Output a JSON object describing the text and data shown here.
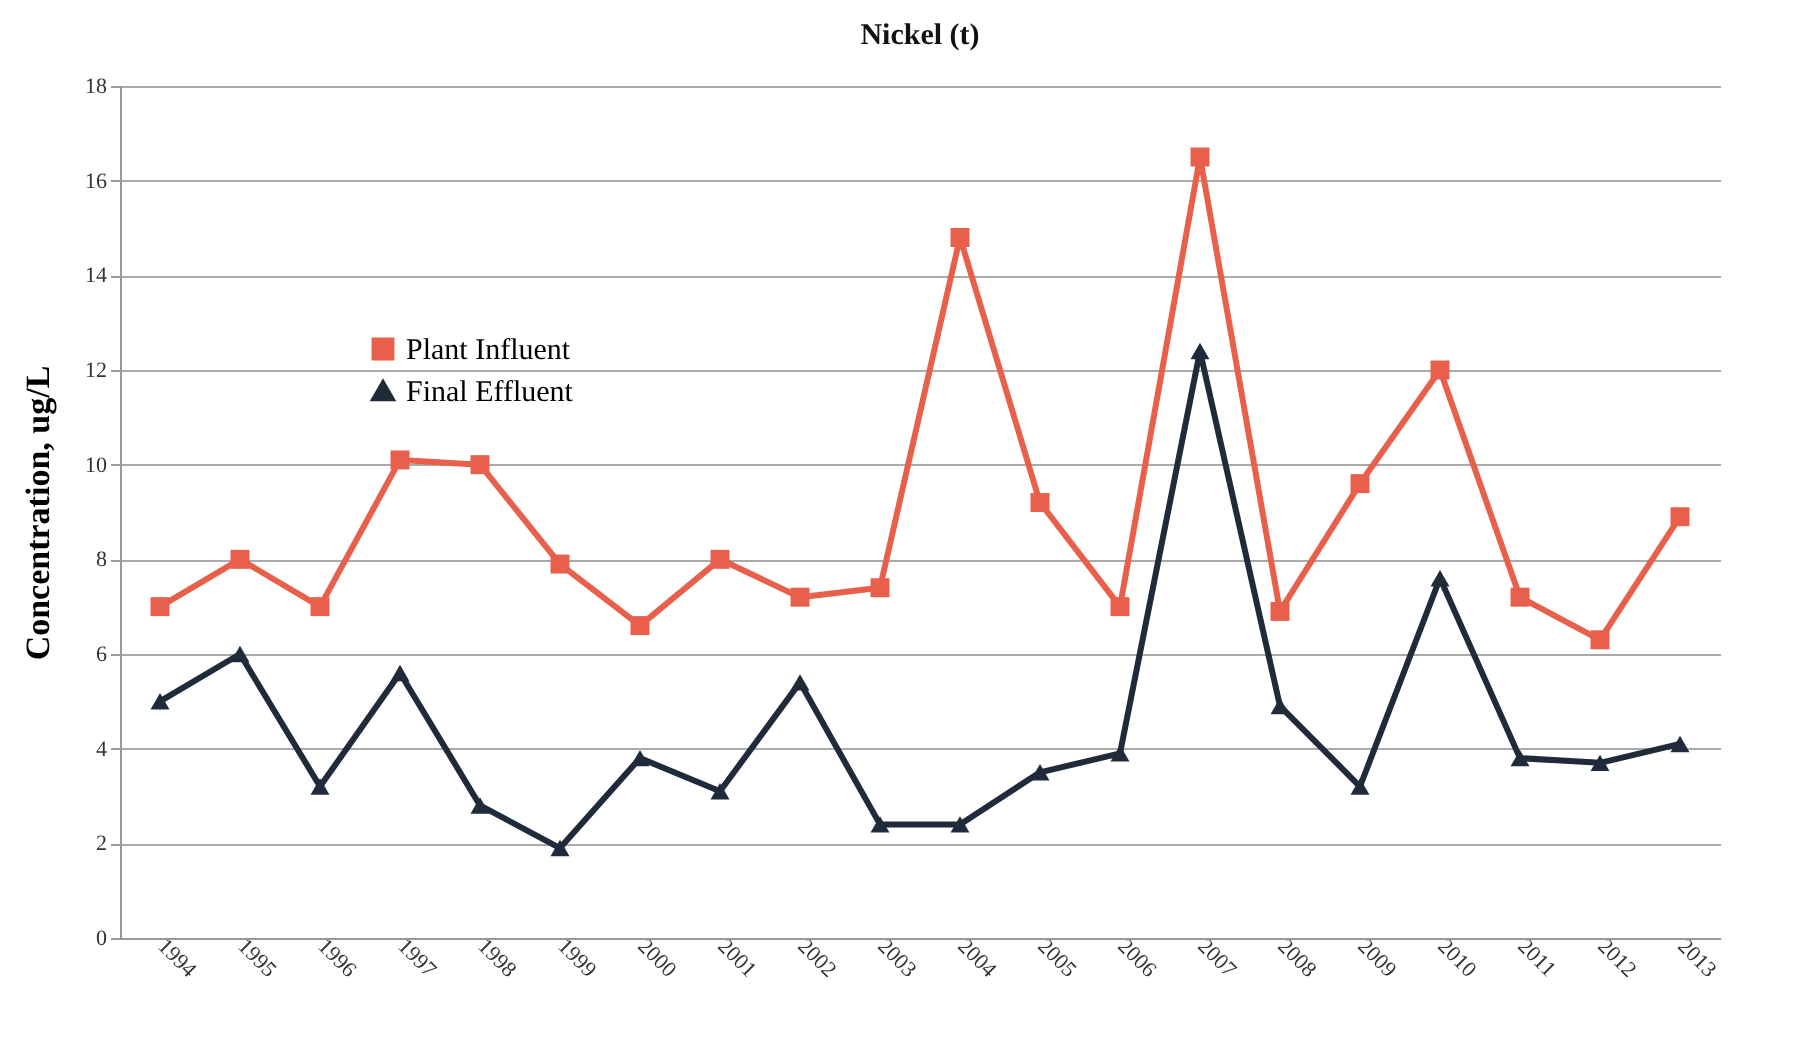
{
  "chart_data": {
    "type": "line",
    "title": "Nickel (t)",
    "ylabel": "Concentration, ug/L",
    "categories": [
      "1994",
      "1995",
      "1996",
      "1997",
      "1998",
      "1999",
      "2000",
      "2001",
      "2002",
      "2003",
      "2004",
      "2005",
      "2006",
      "2007",
      "2008",
      "2009",
      "2010",
      "2011",
      "2012",
      "2013"
    ],
    "series": [
      {
        "name": "Plant Influent",
        "color": "#e8604c",
        "marker": "square",
        "values": [
          7.0,
          8.0,
          7.0,
          10.1,
          10.0,
          7.9,
          6.6,
          8.0,
          7.2,
          7.4,
          14.8,
          9.2,
          7.0,
          16.5,
          6.9,
          9.6,
          12.0,
          7.2,
          6.3,
          8.9
        ]
      },
      {
        "name": "Final Effluent",
        "color": "#1f2a3a",
        "marker": "triangle",
        "values": [
          5.0,
          6.0,
          3.2,
          5.6,
          2.8,
          1.9,
          3.8,
          3.1,
          5.4,
          2.4,
          2.4,
          3.5,
          3.9,
          12.4,
          4.9,
          3.2,
          7.6,
          3.8,
          3.7,
          4.1
        ]
      }
    ],
    "ylim": [
      0,
      18
    ],
    "yticks": [
      0,
      2,
      4,
      6,
      8,
      10,
      12,
      14,
      16,
      18
    ],
    "grid": "y",
    "legend": "top left",
    "line_style": "solid"
  }
}
